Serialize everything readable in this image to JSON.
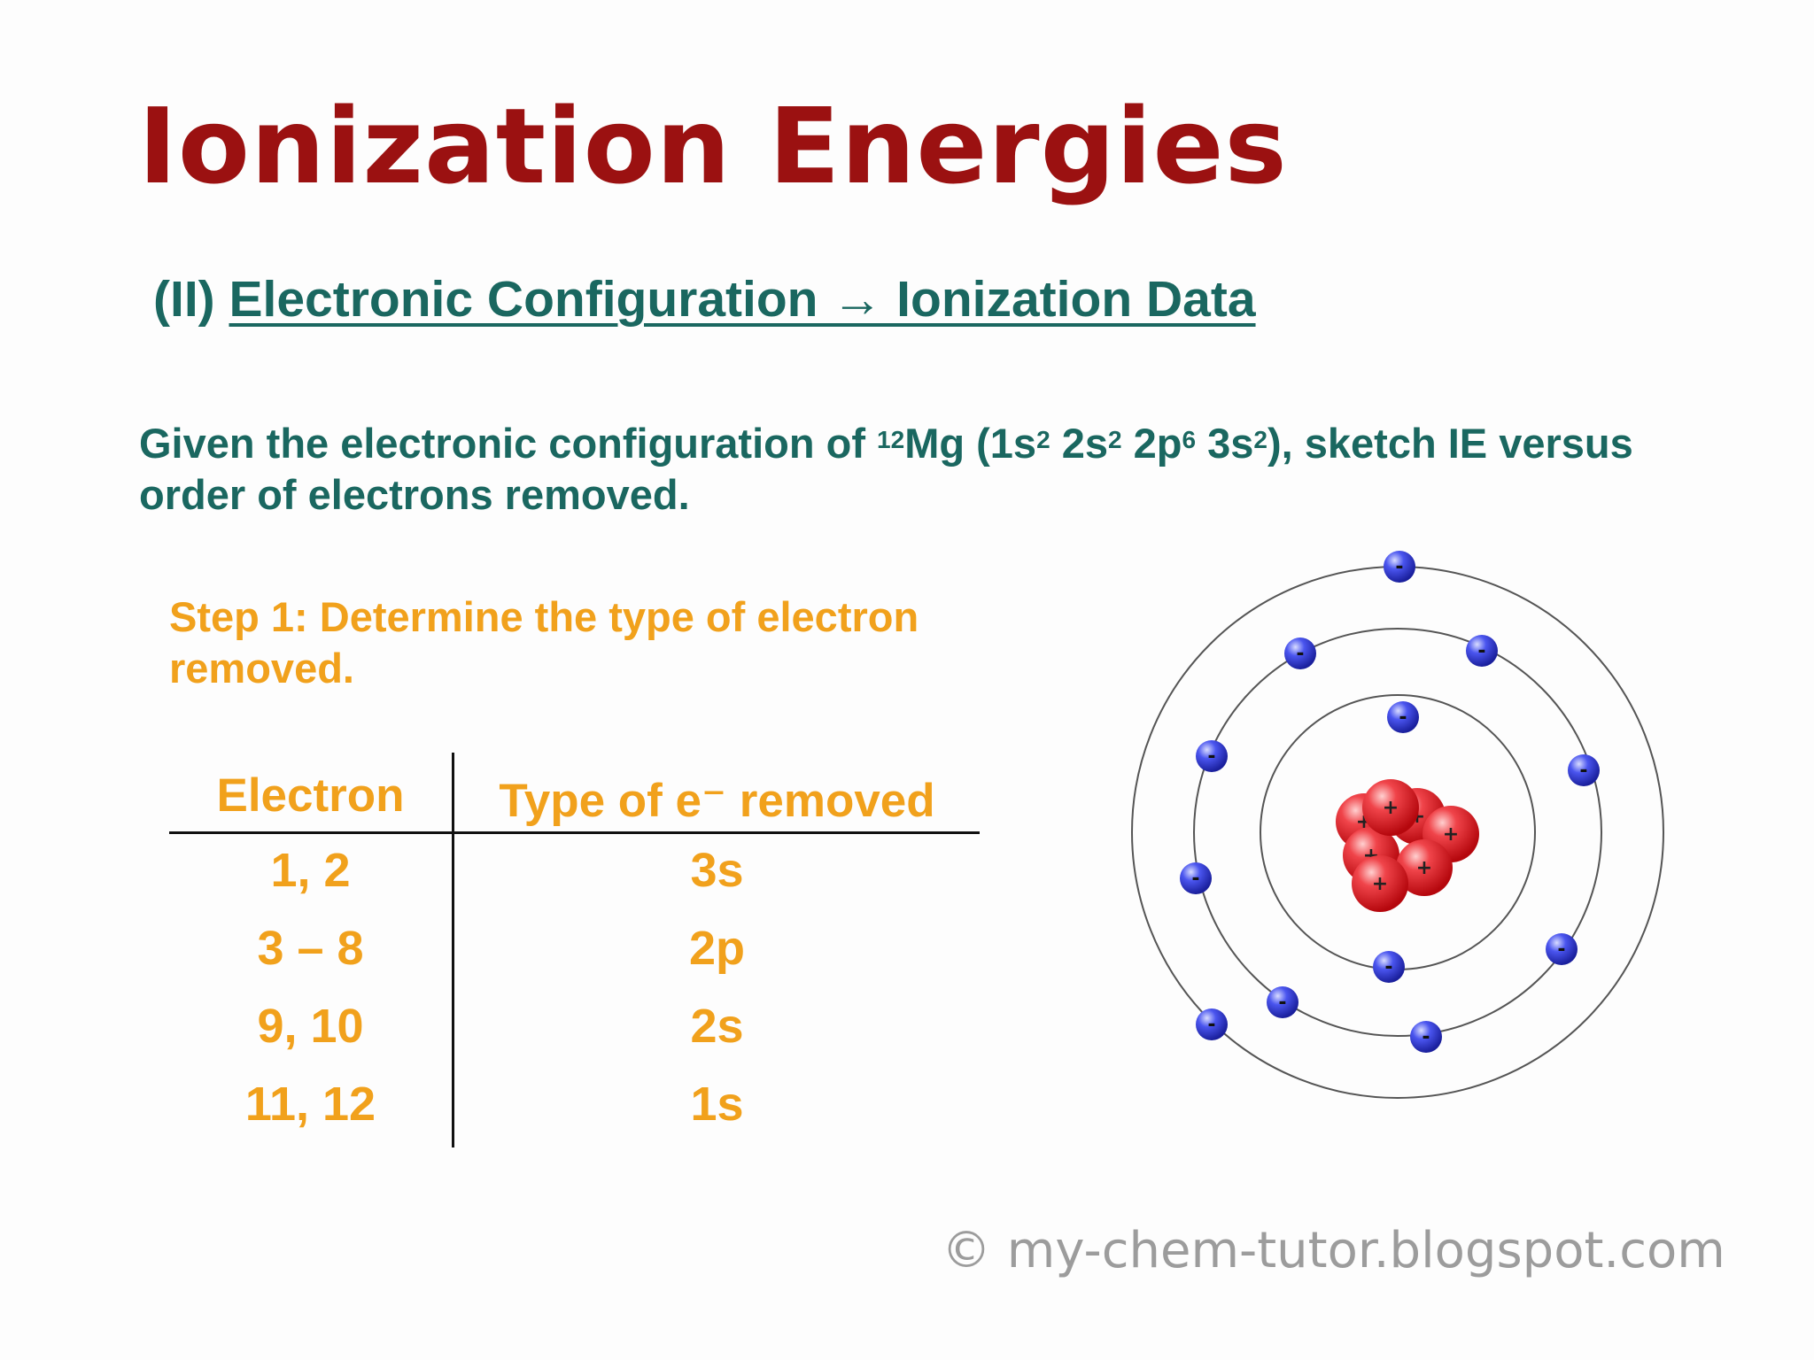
{
  "title": "Ionization Energies",
  "subtitle": {
    "prefix": "(II)",
    "link_text": "Electronic Configuration → Ionization Data"
  },
  "question": {
    "text_before": "Given the electronic configuration of ",
    "mg_superscript": "12",
    "mg_symbol": "Mg (1s",
    "s1_exp": "2",
    "part2": " 2s",
    "s2_exp": "2",
    "part3": " 2p",
    "p_exp": "6",
    "part4": " 3s",
    "s3_exp": "2",
    "text_after": "), sketch IE versus order of electrons removed."
  },
  "step": "Step 1: Determine the type of electron removed.",
  "table": {
    "headers": [
      "Electron",
      "Type of e⁻ removed"
    ],
    "rows": [
      [
        "1, 2",
        "3s"
      ],
      [
        "3 – 8",
        "2p"
      ],
      [
        "9, 10",
        "2s"
      ],
      [
        "11, 12",
        "1s"
      ]
    ]
  },
  "diagram": {
    "proton_symbol": "+",
    "electron_symbol": "-",
    "colors": {
      "proton": "#e8242a",
      "electron": "#2b36d8",
      "orbit": "#555555"
    }
  },
  "copyright": "© my-chem-tutor.blogspot.com"
}
